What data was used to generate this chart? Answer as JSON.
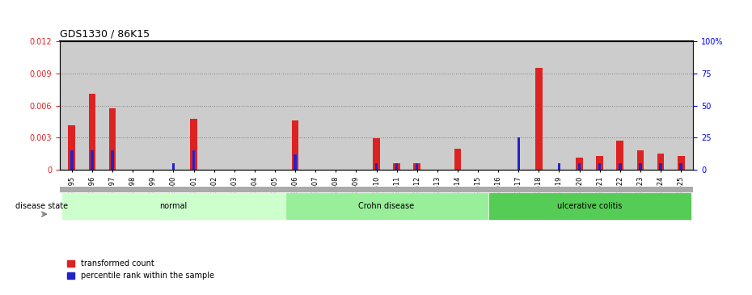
{
  "title": "GDS1330 / 86K15",
  "samples": [
    "GSM29595",
    "GSM29596",
    "GSM29597",
    "GSM29598",
    "GSM29599",
    "GSM29600",
    "GSM29601",
    "GSM29602",
    "GSM29603",
    "GSM29604",
    "GSM29605",
    "GSM29606",
    "GSM29607",
    "GSM29608",
    "GSM29609",
    "GSM29610",
    "GSM29611",
    "GSM29612",
    "GSM29613",
    "GSM29614",
    "GSM29615",
    "GSM29616",
    "GSM29617",
    "GSM29618",
    "GSM29619",
    "GSM29620",
    "GSM29621",
    "GSM29622",
    "GSM29623",
    "GSM29624",
    "GSM29625"
  ],
  "transformed_count": [
    0.00415,
    0.00715,
    0.00575,
    0.0,
    0.0,
    0.0,
    0.00475,
    0.0,
    0.0,
    0.0,
    0.0,
    0.00465,
    0.0,
    0.0,
    0.0,
    0.00295,
    0.0006,
    0.0006,
    0.0,
    0.00195,
    0.0,
    0.0,
    0.0,
    0.0095,
    0.0,
    0.00115,
    0.0013,
    0.0027,
    0.00185,
    0.00155,
    0.0013
  ],
  "percentile_rank": [
    15,
    15,
    15,
    0,
    0,
    5,
    15,
    0,
    0,
    0,
    0,
    12,
    0,
    0,
    0,
    5,
    5,
    5,
    0,
    0,
    0,
    0,
    25,
    0,
    5,
    5,
    5,
    5,
    5,
    5,
    5
  ],
  "groups": [
    {
      "label": "normal",
      "start": 0,
      "end": 10,
      "color": "#ccffcc"
    },
    {
      "label": "Crohn disease",
      "start": 11,
      "end": 20,
      "color": "#99ee99"
    },
    {
      "label": "ulcerative colitis",
      "start": 21,
      "end": 30,
      "color": "#55cc55"
    }
  ],
  "ylim_left": [
    0,
    0.012
  ],
  "ylim_right": [
    0,
    100
  ],
  "yticks_left": [
    0,
    0.003,
    0.006,
    0.009,
    0.012
  ],
  "yticks_right": [
    0,
    25,
    50,
    75,
    100
  ],
  "bar_width": 0.35,
  "red_color": "#dd2222",
  "blue_color": "#2222cc",
  "bg_color": "#cccccc",
  "disease_state_label": "disease state",
  "legend_items": [
    "transformed count",
    "percentile rank within the sample"
  ]
}
